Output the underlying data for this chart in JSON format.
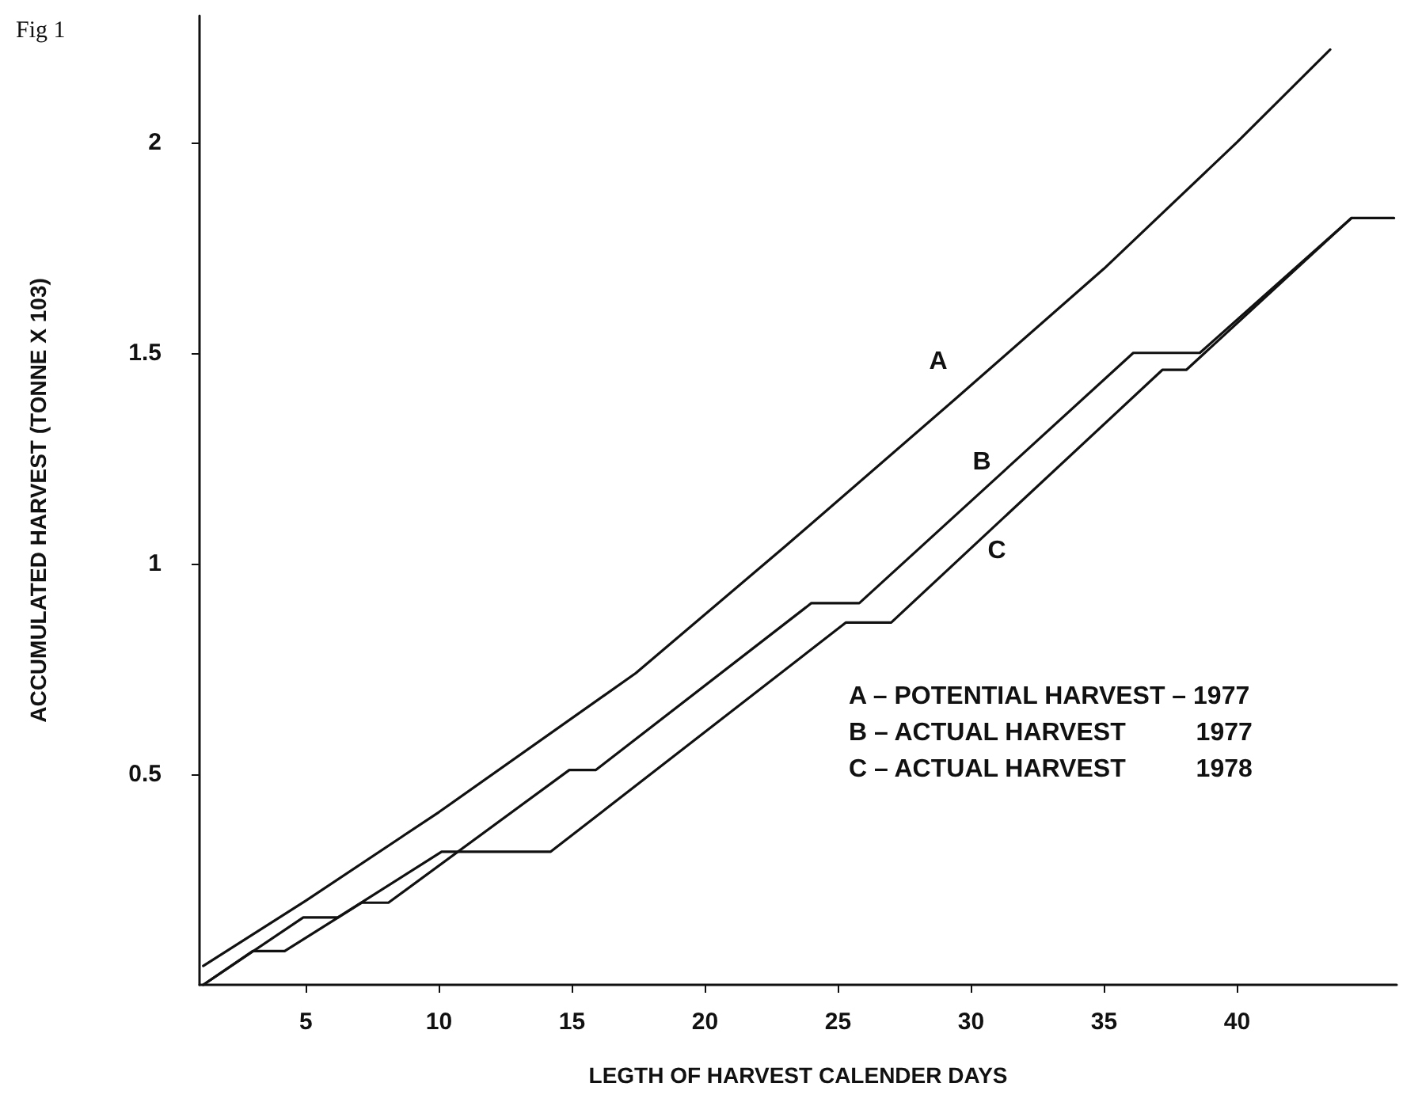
{
  "chart_data": {
    "type": "line",
    "xlabel": "LEGTH OF HARVEST CALENDER DAYS",
    "ylabel": "ACCUMULATED HARVEST (TONNE X 103)",
    "xlim": [
      1,
      46
    ],
    "xticks": [
      5,
      10,
      15,
      20,
      25,
      30,
      35,
      40
    ],
    "ylim": [
      0,
      2.3
    ],
    "yticks": [
      0.5,
      1,
      1.5,
      2
    ],
    "grid": false,
    "legend": false,
    "marker": "none",
    "line_style": "solid",
    "series": [
      {
        "name": "A",
        "color": "#111111",
        "x": [
          1.14,
          5,
          10,
          17.4,
          23,
          29.4,
          35,
          40,
          43.5
        ],
        "values": [
          0.045,
          0.2,
          0.41,
          0.74,
          1.04,
          1.39,
          1.7,
          2.0,
          2.22
        ]
      },
      {
        "name": "B",
        "color": "#111111",
        "x": [
          1.14,
          3,
          4.2,
          7.1,
          8.1,
          14.9,
          15.9,
          24,
          25.8,
          36.1,
          38.6,
          44.3,
          45.9
        ],
        "values": [
          0,
          0.08,
          0.08,
          0.195,
          0.195,
          0.51,
          0.51,
          0.906,
          0.906,
          1.5,
          1.5,
          1.82,
          1.82
        ]
      },
      {
        "name": "C",
        "color": "#111111",
        "x": [
          1.14,
          4.9,
          6.2,
          10.1,
          14.2,
          25.3,
          27,
          37.2,
          38.1,
          44.3
        ],
        "values": [
          0,
          0.16,
          0.16,
          0.316,
          0.316,
          0.86,
          0.86,
          1.46,
          1.46,
          1.82
        ]
      }
    ],
    "annotations": [
      "Fig 1",
      "A – POTENTIAL HARVEST – 1977",
      "B – ACTUAL HARVEST          1977",
      "C – ACTUAL HARVEST          1978"
    ]
  }
}
